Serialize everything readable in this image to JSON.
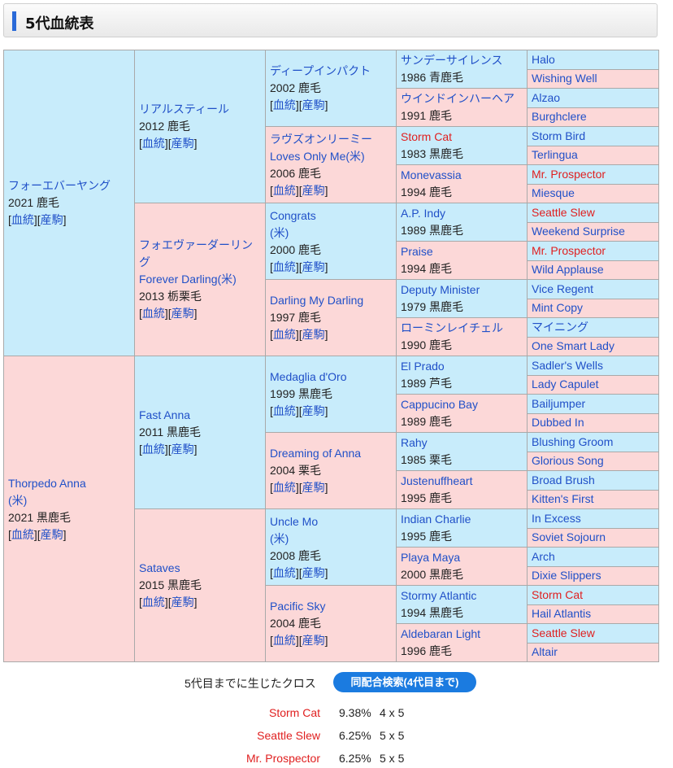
{
  "header": {
    "title": "5代血統表"
  },
  "links": {
    "blood": "血統",
    "produce": "産駒"
  },
  "g1": [
    {
      "name": "フォーエバーヤング",
      "info": "2021 鹿毛",
      "sex": "m"
    },
    {
      "name": "Thorpedo Anna",
      "name2": "(米)",
      "info": "2021 黒鹿毛",
      "sex": "f"
    }
  ],
  "g2": [
    {
      "name": "リアルスティール",
      "info": "2012 鹿毛",
      "sex": "m"
    },
    {
      "name": "フォエヴァーダーリング",
      "name2": "Forever Darling(米)",
      "info": "2013 栃栗毛",
      "sex": "f"
    },
    {
      "name": "Fast Anna",
      "info": "2011 黒鹿毛",
      "sex": "m"
    },
    {
      "name": "Sataves",
      "info": "2015 黒鹿毛",
      "sex": "f"
    }
  ],
  "g3": [
    {
      "name": "ディープインパクト",
      "info": "2002 鹿毛",
      "sex": "m"
    },
    {
      "name": "ラヴズオンリーミー",
      "name2": "Loves Only Me(米)",
      "info": "2006 鹿毛",
      "sex": "f"
    },
    {
      "name": "Congrats",
      "name2": "(米)",
      "info": "2000 鹿毛",
      "sex": "m"
    },
    {
      "name": "Darling My Darling",
      "info": "1997 鹿毛",
      "sex": "f"
    },
    {
      "name": "Medaglia d'Oro",
      "info": "1999 黒鹿毛",
      "sex": "m"
    },
    {
      "name": "Dreaming of Anna",
      "info": "2004 栗毛",
      "sex": "f"
    },
    {
      "name": "Uncle Mo",
      "name2": "(米)",
      "info": "2008 鹿毛",
      "sex": "m"
    },
    {
      "name": "Pacific Sky",
      "info": "2004 鹿毛",
      "sex": "f"
    }
  ],
  "g4": [
    {
      "name": "サンデーサイレンス",
      "info": "1986 青鹿毛",
      "sex": "m"
    },
    {
      "name": "ウインドインハーヘア",
      "info": "1991 鹿毛",
      "sex": "f"
    },
    {
      "name": "Storm Cat",
      "info": "1983 黒鹿毛",
      "sex": "m",
      "red": true
    },
    {
      "name": "Monevassia",
      "info": "1994 鹿毛",
      "sex": "f"
    },
    {
      "name": "A.P. Indy",
      "info": "1989 黒鹿毛",
      "sex": "m"
    },
    {
      "name": "Praise",
      "info": "1994 鹿毛",
      "sex": "f"
    },
    {
      "name": "Deputy Minister",
      "info": "1979 黒鹿毛",
      "sex": "m"
    },
    {
      "name": "ローミンレイチェル",
      "info": "1990 鹿毛",
      "sex": "f"
    },
    {
      "name": "El Prado",
      "info": "1989 芦毛",
      "sex": "m"
    },
    {
      "name": "Cappucino Bay",
      "info": "1989 鹿毛",
      "sex": "f"
    },
    {
      "name": "Rahy",
      "info": "1985 栗毛",
      "sex": "m"
    },
    {
      "name": "Justenuffheart",
      "info": "1995 鹿毛",
      "sex": "f"
    },
    {
      "name": "Indian Charlie",
      "info": "1995 鹿毛",
      "sex": "m"
    },
    {
      "name": "Playa Maya",
      "info": "2000 黒鹿毛",
      "sex": "f"
    },
    {
      "name": "Stormy Atlantic",
      "info": "1994 黒鹿毛",
      "sex": "m"
    },
    {
      "name": "Aldebaran Light",
      "info": "1996 鹿毛",
      "sex": "f"
    }
  ],
  "g5": [
    {
      "name": "Halo",
      "sex": "m"
    },
    {
      "name": "Wishing Well",
      "sex": "f"
    },
    {
      "name": "Alzao",
      "sex": "m"
    },
    {
      "name": "Burghclere",
      "sex": "f"
    },
    {
      "name": "Storm Bird",
      "sex": "m"
    },
    {
      "name": "Terlingua",
      "sex": "f"
    },
    {
      "name": "Mr. Prospector",
      "sex": "m",
      "red": true
    },
    {
      "name": "Miesque",
      "sex": "f"
    },
    {
      "name": "Seattle Slew",
      "sex": "m",
      "red": true
    },
    {
      "name": "Weekend Surprise",
      "sex": "f"
    },
    {
      "name": "Mr. Prospector",
      "sex": "m",
      "red": true
    },
    {
      "name": "Wild Applause",
      "sex": "f"
    },
    {
      "name": "Vice Regent",
      "sex": "m"
    },
    {
      "name": "Mint Copy",
      "sex": "f"
    },
    {
      "name": "マイニング",
      "sex": "m"
    },
    {
      "name": "One Smart Lady",
      "sex": "f"
    },
    {
      "name": "Sadler's Wells",
      "sex": "m"
    },
    {
      "name": "Lady Capulet",
      "sex": "f"
    },
    {
      "name": "Bailjumper",
      "sex": "m"
    },
    {
      "name": "Dubbed In",
      "sex": "f"
    },
    {
      "name": "Blushing Groom",
      "sex": "m"
    },
    {
      "name": "Glorious Song",
      "sex": "f"
    },
    {
      "name": "Broad Brush",
      "sex": "m"
    },
    {
      "name": "Kitten's First",
      "sex": "f"
    },
    {
      "name": "In Excess",
      "sex": "m"
    },
    {
      "name": "Soviet Sojourn",
      "sex": "f"
    },
    {
      "name": "Arch",
      "sex": "m"
    },
    {
      "name": "Dixie Slippers",
      "sex": "f"
    },
    {
      "name": "Storm Cat",
      "sex": "m",
      "red": true
    },
    {
      "name": "Hail Atlantis",
      "sex": "f"
    },
    {
      "name": "Seattle Slew",
      "sex": "m",
      "red": true
    },
    {
      "name": "Altair",
      "sex": "f"
    }
  ],
  "cross": {
    "label": "5代目までに生じたクロス",
    "button": "同配合検索(4代目まで)",
    "items": [
      {
        "name": "Storm Cat",
        "pct": "9.38%",
        "gen": "4 x 5"
      },
      {
        "name": "Seattle Slew",
        "pct": "6.25%",
        "gen": "5 x 5"
      },
      {
        "name": "Mr. Prospector",
        "pct": "6.25%",
        "gen": "5 x 5"
      }
    ]
  },
  "colors": {
    "male_bg": "#c8ecfb",
    "female_bg": "#fcd8d8",
    "link": "#2050c8",
    "cross_red": "#e02020",
    "button": "#1b7be0"
  }
}
